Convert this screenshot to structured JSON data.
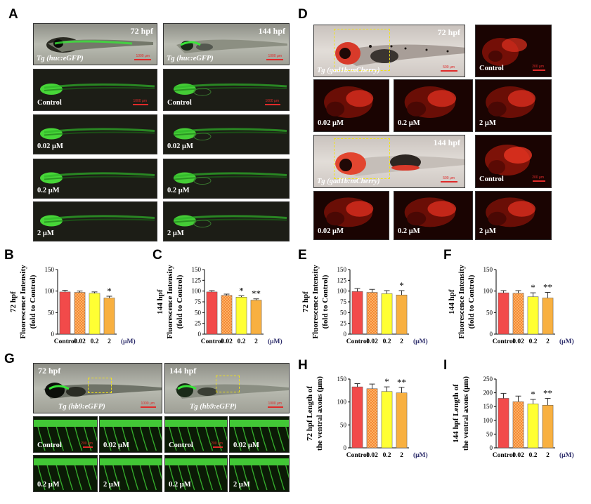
{
  "panel_letters": {
    "A": "A",
    "B": "B",
    "C": "C",
    "D": "D",
    "E": "E",
    "F": "F",
    "G": "G",
    "H": "H",
    "I": "I"
  },
  "panelA": {
    "hpf_72": "72 hpf",
    "hpf_144": "144 hpf",
    "tg": "Tg (huc:eGFP)",
    "scale": "1000 μm",
    "rows": [
      "Control",
      "0.02 μM",
      "0.2 μM",
      "2 μM"
    ]
  },
  "panelD": {
    "hpf_72": "72 hpf",
    "hpf_144": "144 hpf",
    "tg": "Tg (gad1b:mCherry)",
    "scale_bf": "500 μm",
    "scale_zoom": "200 μm",
    "control": "Control",
    "doses": [
      "0.02 μM",
      "0.2 μM",
      "2 μM"
    ]
  },
  "panelG": {
    "hpf_72": "72 hpf",
    "hpf_144": "144 hpf",
    "tg": "Tg (hb9:eGFP)",
    "scale": "1000 μm",
    "scale_small": "200 μm",
    "labels": [
      "Control",
      "0.02 μM",
      "0.2 μM",
      "2 μM"
    ]
  },
  "colors": {
    "control": "#f24a4a",
    "d002": "#f59a3c",
    "d02": "#ffff33",
    "d2": "#f8b040"
  },
  "chart_data": [
    {
      "id": "B",
      "type": "bar",
      "ylabel_main": "72 hpf",
      "ylabel_sub": "Fluorescence Intensity",
      "ylabel_sub2": "(fold to Control)",
      "categories": [
        "Control",
        "0.02",
        "0.2",
        "2"
      ],
      "unit": "(μM)",
      "ylim": [
        0,
        150
      ],
      "yticks": [
        0,
        50,
        100,
        150
      ],
      "values": [
        98,
        97,
        95,
        84
      ],
      "errors": [
        4,
        3,
        3,
        4
      ],
      "sig": [
        "",
        "",
        "",
        "*"
      ]
    },
    {
      "id": "C",
      "type": "bar",
      "ylabel_main": "144 hpf",
      "ylabel_sub": "Fluorescence Intensity",
      "ylabel_sub2": "(fold to Control)",
      "categories": [
        "Control",
        "0.02",
        "0.2",
        "2"
      ],
      "unit": "(μM)",
      "ylim": [
        0,
        150
      ],
      "yticks": [
        0,
        25,
        50,
        75,
        100,
        125,
        150
      ],
      "values": [
        98,
        90,
        86,
        79
      ],
      "errors": [
        3,
        3,
        3,
        3
      ],
      "sig": [
        "",
        "",
        "*",
        "**"
      ]
    },
    {
      "id": "E",
      "type": "bar",
      "ylabel_main": "72 hpf",
      "ylabel_sub": "Fluorescence Intensity",
      "ylabel_sub2": "(fold to Control)",
      "categories": [
        "Control",
        "0.02",
        "0.2",
        "2"
      ],
      "unit": "(μM)",
      "ylim": [
        0,
        150
      ],
      "yticks": [
        0,
        25,
        50,
        75,
        100,
        125,
        150
      ],
      "values": [
        99,
        97,
        94,
        91
      ],
      "errors": [
        7,
        7,
        7,
        10
      ],
      "sig": [
        "",
        "",
        "",
        "*"
      ]
    },
    {
      "id": "F",
      "type": "bar",
      "ylabel_main": "144 hpf",
      "ylabel_sub": "Fluorescence Intensity",
      "ylabel_sub2": "(fold to Control)",
      "categories": [
        "Control",
        "0.02",
        "0.2",
        "2"
      ],
      "unit": "(μM)",
      "ylim": [
        0,
        150
      ],
      "yticks": [
        0,
        50,
        100,
        150
      ],
      "values": [
        96,
        95,
        87,
        84
      ],
      "errors": [
        5,
        6,
        9,
        13
      ],
      "sig": [
        "",
        "",
        "*",
        "**"
      ]
    },
    {
      "id": "H",
      "type": "bar",
      "ylabel_main": "72 hpf Length of",
      "ylabel_sub": "the ventral axons (μm)",
      "ylabel_sub2": "",
      "categories": [
        "Control",
        "0.02",
        "0.2",
        "2"
      ],
      "unit": "(μM)",
      "ylim": [
        0,
        150
      ],
      "yticks": [
        0,
        50,
        100,
        150
      ],
      "values": [
        133,
        129,
        123,
        120
      ],
      "errors": [
        7,
        10,
        10,
        12
      ],
      "sig": [
        "",
        "",
        "*",
        "**"
      ]
    },
    {
      "id": "I",
      "type": "bar",
      "ylabel_main": "144 hpf Length of",
      "ylabel_sub": "the ventral axons (μm)",
      "ylabel_sub2": "",
      "categories": [
        "Control",
        "0.02",
        "0.2",
        "2"
      ],
      "unit": "(μM)",
      "ylim": [
        0,
        250
      ],
      "yticks": [
        0,
        50,
        100,
        150,
        200,
        250
      ],
      "values": [
        180,
        168,
        160,
        155
      ],
      "errors": [
        18,
        20,
        16,
        25
      ],
      "sig": [
        "",
        "",
        "*",
        "**"
      ]
    }
  ]
}
